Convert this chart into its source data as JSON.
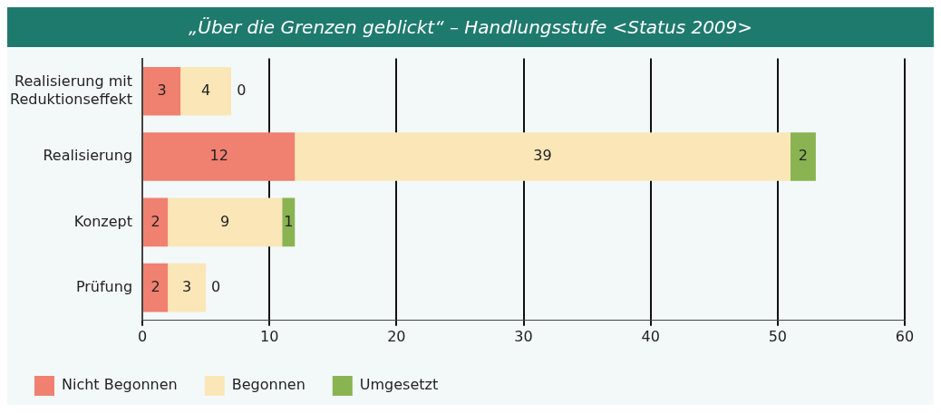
{
  "chart_data": {
    "type": "bar",
    "orientation": "horizontal",
    "stacked": true,
    "title": "„Über die Grenzen geblickt“ – Handlungsstufe <Status 2009>",
    "categories": [
      "Realisierung mit Reduktionseffekt",
      "Realisierung",
      "Konzept",
      "Prüfung"
    ],
    "series": [
      {
        "name": "Nicht Begonnen",
        "color": "#f08070",
        "values": [
          3,
          12,
          2,
          2
        ]
      },
      {
        "name": "Begonnen",
        "color": "#fbe6b8",
        "values": [
          4,
          39,
          9,
          3
        ]
      },
      {
        "name": "Umgesetzt",
        "color": "#8ab352",
        "values": [
          0,
          2,
          1,
          0
        ]
      }
    ],
    "xlim": [
      0,
      60
    ],
    "xticks": [
      0,
      10,
      20,
      30,
      40,
      50,
      60
    ],
    "grid": "x",
    "legend": "bottom",
    "data_labels": true
  }
}
